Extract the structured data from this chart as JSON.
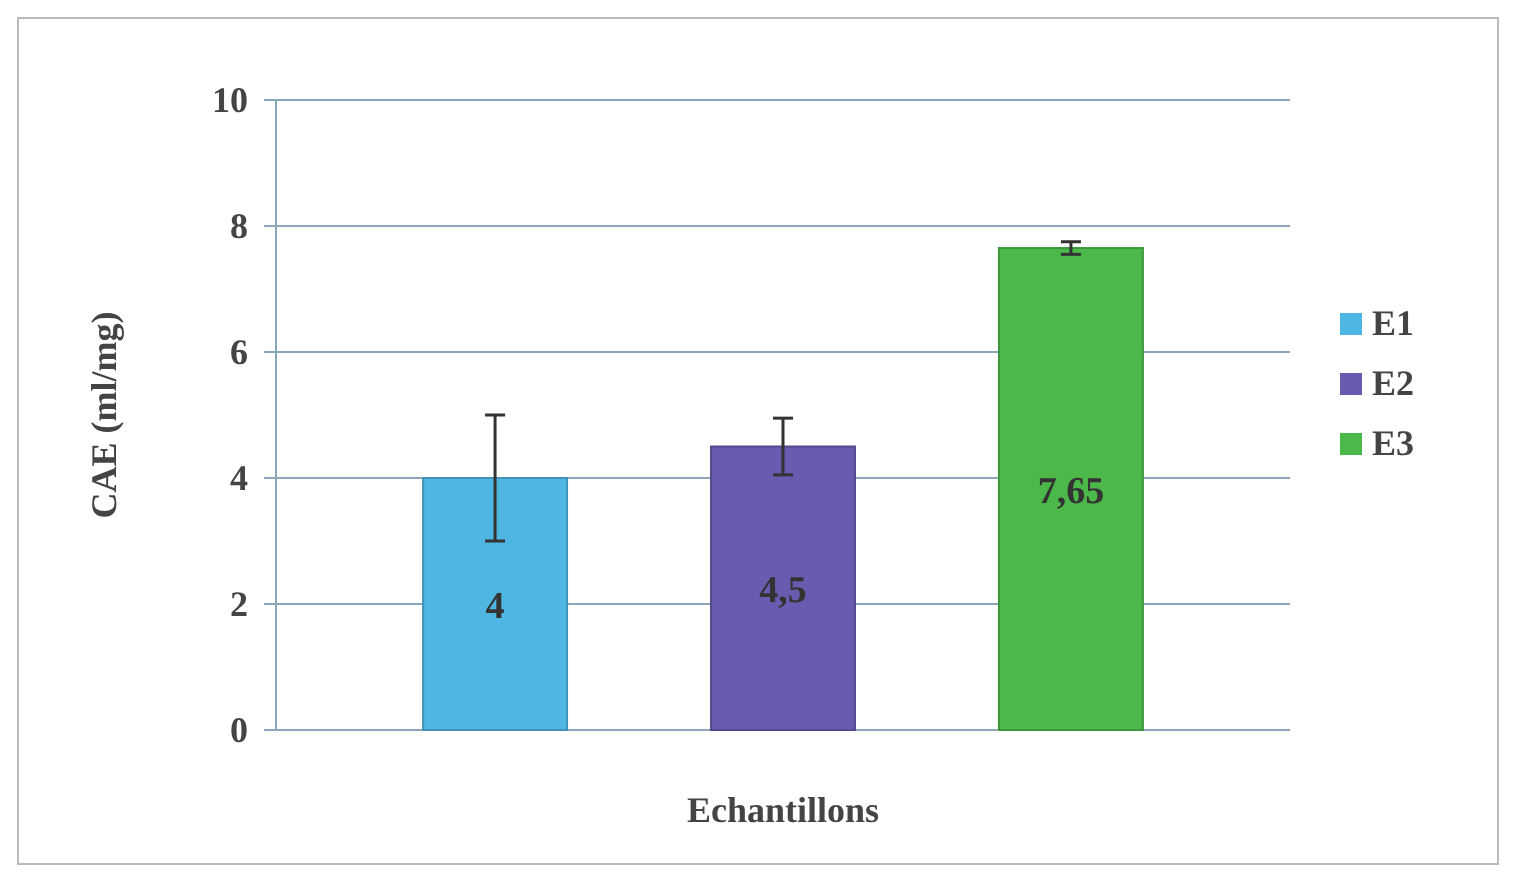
{
  "chart_data": {
    "type": "bar",
    "xlabel": "Echantillons",
    "ylabel": "CAE (ml/mg)",
    "categories": [
      null
    ],
    "series": [
      {
        "name": "E1",
        "color": "#4fb6e3",
        "values": [
          4
        ],
        "errors": [
          1
        ],
        "value_labels": [
          "4"
        ]
      },
      {
        "name": "E2",
        "color": "#6a5bb0",
        "values": [
          4.5
        ],
        "errors": [
          0.45
        ],
        "value_labels": [
          "4,5"
        ]
      },
      {
        "name": "E3",
        "color": "#4cb84a",
        "values": [
          7.65
        ],
        "errors": [
          0.1
        ],
        "value_labels": [
          "7,65"
        ]
      }
    ],
    "ylim": [
      0,
      10
    ],
    "yticks": [
      0,
      2,
      4,
      6,
      8,
      10
    ],
    "grid": "y",
    "legend": "right"
  }
}
